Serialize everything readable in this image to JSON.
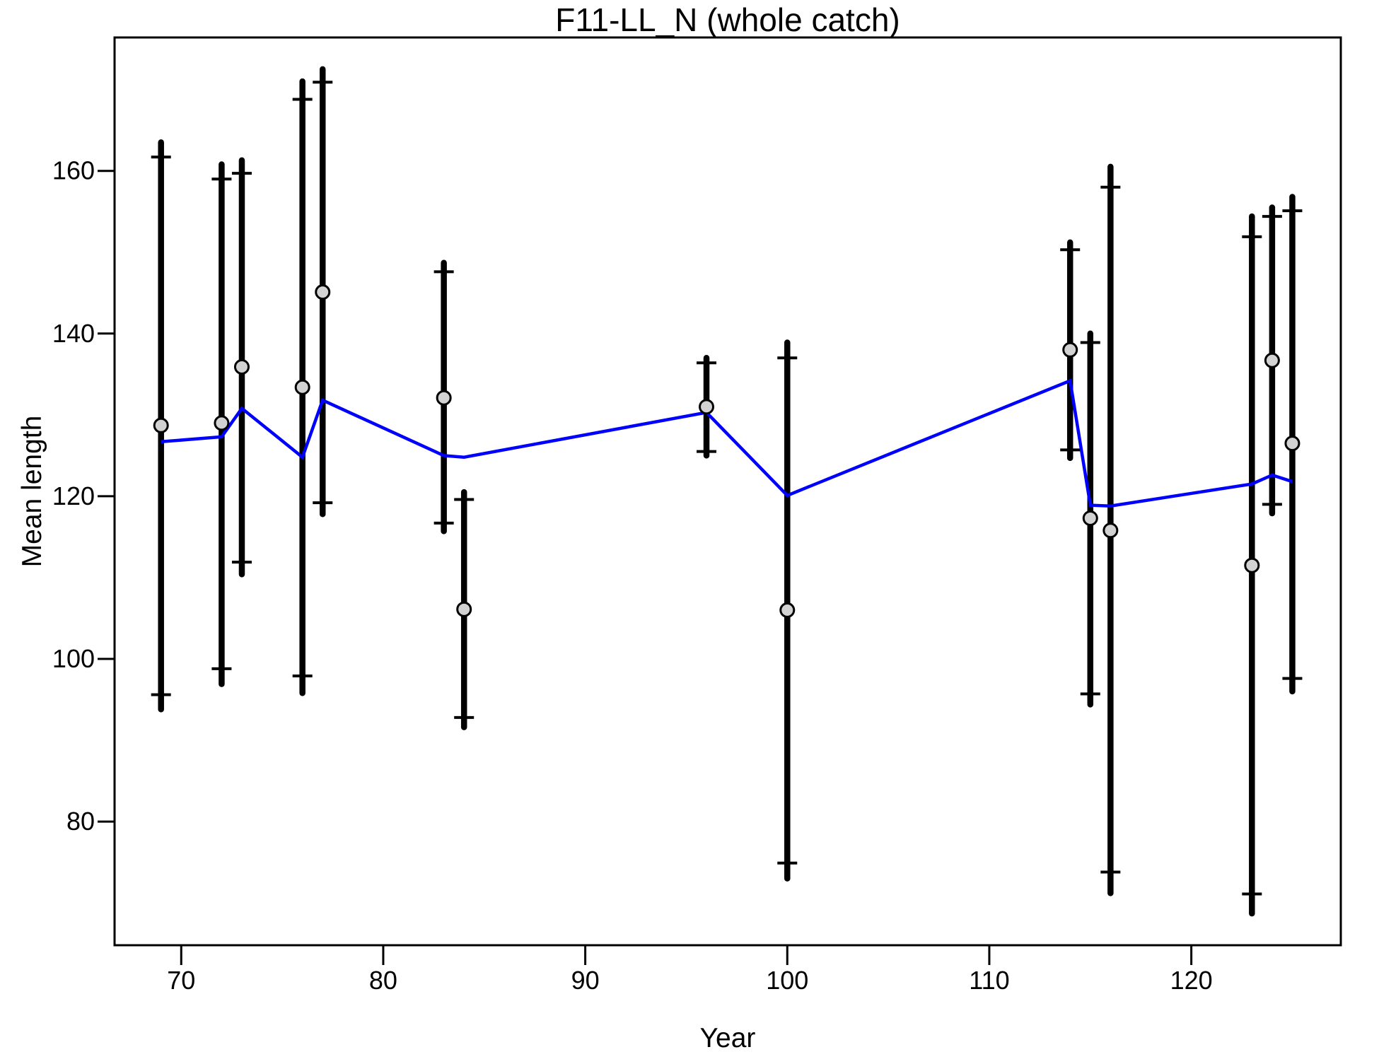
{
  "title": "F11-LL_N (whole catch)",
  "chart_data": {
    "type": "scatter",
    "subtype": "errorbar-with-fit-line",
    "title": "F11-LL_N (whole catch)",
    "xlabel": "Year",
    "ylabel": "Mean length",
    "xlim": [
      66.7,
      127.4
    ],
    "ylim": [
      64.8,
      176.4
    ],
    "x_ticks": [
      70,
      80,
      90,
      100,
      110,
      120
    ],
    "y_ticks": [
      80,
      100,
      120,
      140,
      160
    ],
    "grid": false,
    "legend": "none",
    "colors": {
      "bar": "#000000",
      "point_fill": "#d2d2d2",
      "point_stroke": "#000000",
      "fit_line": "#0000ff",
      "axis": "#000000"
    },
    "points": [
      {
        "year": 69,
        "mean": 128.7,
        "lo": 93.8,
        "cap_lo": 95.6,
        "cap_hi": 161.7,
        "hi": 163.5
      },
      {
        "year": 72,
        "mean": 129.0,
        "lo": 96.9,
        "cap_lo": 98.8,
        "cap_hi": 159.0,
        "hi": 160.8
      },
      {
        "year": 73,
        "mean": 135.9,
        "lo": 110.4,
        "cap_lo": 111.9,
        "cap_hi": 159.7,
        "hi": 161.3
      },
      {
        "year": 76,
        "mean": 133.4,
        "lo": 95.8,
        "cap_lo": 97.9,
        "cap_hi": 168.8,
        "hi": 171.0
      },
      {
        "year": 77,
        "mean": 145.1,
        "lo": 117.8,
        "cap_lo": 119.2,
        "cap_hi": 170.9,
        "hi": 172.5
      },
      {
        "year": 83,
        "mean": 132.1,
        "lo": 115.7,
        "cap_lo": 116.7,
        "cap_hi": 147.6,
        "hi": 148.7
      },
      {
        "year": 84,
        "mean": 106.1,
        "lo": 91.6,
        "cap_lo": 92.8,
        "cap_hi": 119.6,
        "hi": 120.5
      },
      {
        "year": 96,
        "mean": 131.0,
        "lo": 125.0,
        "cap_lo": 125.5,
        "cap_hi": 136.4,
        "hi": 137.0
      },
      {
        "year": 100,
        "mean": 106.0,
        "lo": 73.0,
        "cap_lo": 74.9,
        "cap_hi": 137.0,
        "hi": 138.9
      },
      {
        "year": 114,
        "mean": 138.0,
        "lo": 124.7,
        "cap_lo": 125.7,
        "cap_hi": 150.3,
        "hi": 151.2
      },
      {
        "year": 115,
        "mean": 117.3,
        "lo": 94.4,
        "cap_lo": 95.7,
        "cap_hi": 138.9,
        "hi": 140.0
      },
      {
        "year": 116,
        "mean": 115.8,
        "lo": 71.2,
        "cap_lo": 73.8,
        "cap_hi": 158.0,
        "hi": 160.5
      },
      {
        "year": 123,
        "mean": 111.5,
        "lo": 68.7,
        "cap_lo": 71.1,
        "cap_hi": 151.9,
        "hi": 154.4
      },
      {
        "year": 124,
        "mean": 136.7,
        "lo": 117.9,
        "cap_lo": 119.0,
        "cap_hi": 154.4,
        "hi": 155.5
      },
      {
        "year": 125,
        "mean": 126.5,
        "lo": 96.0,
        "cap_lo": 97.6,
        "cap_hi": 155.1,
        "hi": 156.8
      }
    ],
    "fit_line": [
      {
        "year": 69,
        "value": 126.7
      },
      {
        "year": 72,
        "value": 127.3
      },
      {
        "year": 73,
        "value": 130.8
      },
      {
        "year": 76,
        "value": 124.8
      },
      {
        "year": 77,
        "value": 131.8
      },
      {
        "year": 83,
        "value": 125.0
      },
      {
        "year": 84,
        "value": 124.8
      },
      {
        "year": 96,
        "value": 130.3
      },
      {
        "year": 100,
        "value": 120.1
      },
      {
        "year": 114,
        "value": 134.2
      },
      {
        "year": 115,
        "value": 118.9
      },
      {
        "year": 116,
        "value": 118.8
      },
      {
        "year": 123,
        "value": 121.5
      },
      {
        "year": 124,
        "value": 122.6
      },
      {
        "year": 125,
        "value": 121.8
      }
    ]
  }
}
